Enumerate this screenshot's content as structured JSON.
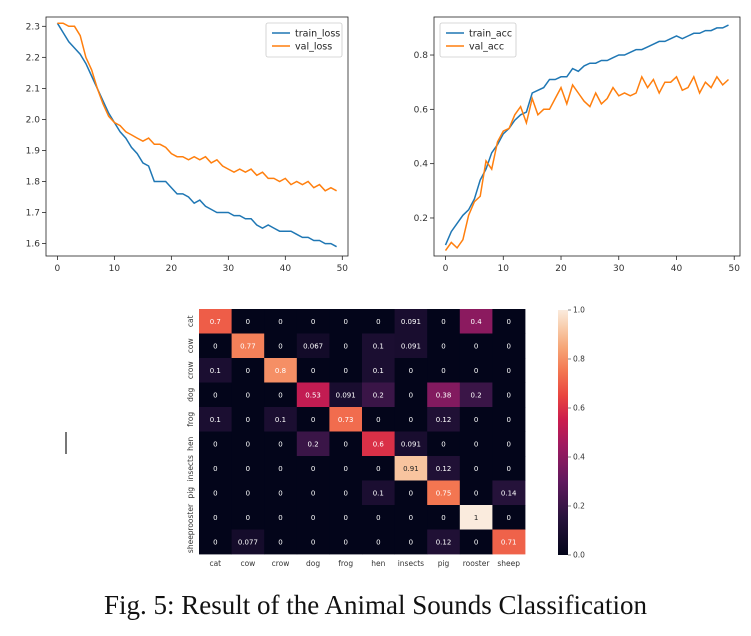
{
  "chart_data": [
    {
      "type": "line",
      "title": "",
      "xlabel": "",
      "ylabel": "",
      "xlim": [
        -2,
        51
      ],
      "ylim": [
        1.56,
        2.33
      ],
      "xticks": [
        0,
        10,
        20,
        30,
        40,
        50
      ],
      "yticks": [
        1.6,
        1.7,
        1.8,
        1.9,
        2.0,
        2.1,
        2.2,
        2.3
      ],
      "ytick_labels": [
        "1.6",
        "1.7",
        "1.8",
        "1.9",
        "2.0",
        "2.1",
        "2.2",
        "2.3"
      ],
      "legend_position": "top-right",
      "grid": false,
      "series": [
        {
          "name": "train_loss",
          "color": "#1f77b4",
          "x": [
            0,
            1,
            2,
            3,
            4,
            5,
            6,
            7,
            8,
            9,
            10,
            11,
            12,
            13,
            14,
            15,
            16,
            17,
            18,
            19,
            20,
            21,
            22,
            23,
            24,
            25,
            26,
            27,
            28,
            29,
            30,
            31,
            32,
            33,
            34,
            35,
            36,
            37,
            38,
            39,
            40,
            41,
            42,
            43,
            44,
            45,
            46,
            47,
            48,
            49
          ],
          "values": [
            2.31,
            2.28,
            2.25,
            2.23,
            2.21,
            2.18,
            2.14,
            2.1,
            2.06,
            2.02,
            1.99,
            1.96,
            1.94,
            1.91,
            1.89,
            1.86,
            1.85,
            1.8,
            1.8,
            1.8,
            1.78,
            1.76,
            1.76,
            1.75,
            1.73,
            1.74,
            1.72,
            1.71,
            1.7,
            1.7,
            1.7,
            1.69,
            1.69,
            1.68,
            1.68,
            1.66,
            1.65,
            1.66,
            1.65,
            1.64,
            1.64,
            1.64,
            1.63,
            1.62,
            1.62,
            1.61,
            1.61,
            1.6,
            1.6,
            1.59
          ]
        },
        {
          "name": "val_loss",
          "color": "#ff7f0e",
          "x": [
            0,
            1,
            2,
            3,
            4,
            5,
            6,
            7,
            8,
            9,
            10,
            11,
            12,
            13,
            14,
            15,
            16,
            17,
            18,
            19,
            20,
            21,
            22,
            23,
            24,
            25,
            26,
            27,
            28,
            29,
            30,
            31,
            32,
            33,
            34,
            35,
            36,
            37,
            38,
            39,
            40,
            41,
            42,
            43,
            44,
            45,
            46,
            47,
            48,
            49
          ],
          "values": [
            2.31,
            2.31,
            2.3,
            2.3,
            2.27,
            2.2,
            2.16,
            2.1,
            2.05,
            2.01,
            1.99,
            1.98,
            1.96,
            1.95,
            1.94,
            1.93,
            1.94,
            1.92,
            1.92,
            1.91,
            1.89,
            1.88,
            1.88,
            1.87,
            1.88,
            1.87,
            1.88,
            1.86,
            1.87,
            1.85,
            1.84,
            1.83,
            1.84,
            1.83,
            1.84,
            1.82,
            1.83,
            1.81,
            1.81,
            1.8,
            1.81,
            1.79,
            1.8,
            1.79,
            1.8,
            1.78,
            1.79,
            1.77,
            1.78,
            1.77
          ]
        }
      ]
    },
    {
      "type": "line",
      "title": "",
      "xlabel": "",
      "ylabel": "",
      "xlim": [
        -2,
        51
      ],
      "ylim": [
        0.06,
        0.94
      ],
      "xticks": [
        0,
        10,
        20,
        30,
        40,
        50
      ],
      "yticks": [
        0.2,
        0.4,
        0.6,
        0.8
      ],
      "ytick_labels": [
        "0.2",
        "0.4",
        "0.6",
        "0.8"
      ],
      "legend_position": "top-left",
      "grid": false,
      "series": [
        {
          "name": "train_acc",
          "color": "#1f77b4",
          "x": [
            0,
            1,
            2,
            3,
            4,
            5,
            6,
            7,
            8,
            9,
            10,
            11,
            12,
            13,
            14,
            15,
            16,
            17,
            18,
            19,
            20,
            21,
            22,
            23,
            24,
            25,
            26,
            27,
            28,
            29,
            30,
            31,
            32,
            33,
            34,
            35,
            36,
            37,
            38,
            39,
            40,
            41,
            42,
            43,
            44,
            45,
            46,
            47,
            48,
            49
          ],
          "values": [
            0.1,
            0.15,
            0.18,
            0.21,
            0.23,
            0.27,
            0.34,
            0.38,
            0.44,
            0.47,
            0.51,
            0.53,
            0.56,
            0.58,
            0.59,
            0.66,
            0.67,
            0.68,
            0.71,
            0.71,
            0.72,
            0.72,
            0.75,
            0.74,
            0.76,
            0.77,
            0.77,
            0.78,
            0.78,
            0.79,
            0.8,
            0.8,
            0.81,
            0.82,
            0.82,
            0.83,
            0.84,
            0.85,
            0.85,
            0.86,
            0.87,
            0.86,
            0.87,
            0.88,
            0.88,
            0.89,
            0.89,
            0.9,
            0.9,
            0.91
          ]
        },
        {
          "name": "val_acc",
          "color": "#ff7f0e",
          "x": [
            0,
            1,
            2,
            3,
            4,
            5,
            6,
            7,
            8,
            9,
            10,
            11,
            12,
            13,
            14,
            15,
            16,
            17,
            18,
            19,
            20,
            21,
            22,
            23,
            24,
            25,
            26,
            27,
            28,
            29,
            30,
            31,
            32,
            33,
            34,
            35,
            36,
            37,
            38,
            39,
            40,
            41,
            42,
            43,
            44,
            45,
            46,
            47,
            48,
            49
          ],
          "values": [
            0.08,
            0.11,
            0.09,
            0.12,
            0.21,
            0.26,
            0.28,
            0.41,
            0.38,
            0.48,
            0.52,
            0.53,
            0.58,
            0.61,
            0.55,
            0.64,
            0.58,
            0.6,
            0.6,
            0.64,
            0.68,
            0.62,
            0.69,
            0.66,
            0.63,
            0.61,
            0.66,
            0.62,
            0.64,
            0.68,
            0.65,
            0.66,
            0.65,
            0.66,
            0.72,
            0.68,
            0.71,
            0.66,
            0.7,
            0.7,
            0.72,
            0.67,
            0.68,
            0.72,
            0.66,
            0.7,
            0.68,
            0.72,
            0.69,
            0.71
          ]
        }
      ]
    },
    {
      "type": "heatmap",
      "title": "",
      "x_labels": [
        "cat",
        "cow",
        "crow",
        "dog",
        "frog",
        "hen",
        "insects",
        "pig",
        "rooster",
        "sheep"
      ],
      "y_labels": [
        "cat",
        "cow",
        "crow",
        "dog",
        "frog",
        "hen",
        "insects",
        "pig",
        "rooster",
        "sheep"
      ],
      "values": [
        [
          0.7,
          0,
          0,
          0,
          0,
          0,
          0.091,
          0,
          0.4,
          0
        ],
        [
          0,
          0.77,
          0,
          0.067,
          0,
          0.1,
          0.091,
          0,
          0,
          0
        ],
        [
          0.1,
          0,
          0.8,
          0,
          0,
          0.1,
          0,
          0,
          0,
          0
        ],
        [
          0,
          0,
          0,
          0.53,
          0.091,
          0.2,
          0,
          0.38,
          0.2,
          0
        ],
        [
          0.1,
          0,
          0.1,
          0,
          0.73,
          0,
          0,
          0.12,
          0,
          0
        ],
        [
          0,
          0,
          0,
          0.2,
          0,
          0.6,
          0.091,
          0,
          0,
          0
        ],
        [
          0,
          0,
          0,
          0,
          0,
          0,
          0.91,
          0.12,
          0,
          0
        ],
        [
          0,
          0,
          0,
          0,
          0,
          0.1,
          0,
          0.75,
          0,
          0.14
        ],
        [
          0,
          0,
          0,
          0,
          0,
          0,
          0,
          0,
          1,
          0
        ],
        [
          0,
          0.077,
          0,
          0,
          0,
          0,
          0,
          0.12,
          0,
          0.71
        ]
      ],
      "cell_labels": [
        [
          "0.7",
          "0",
          "0",
          "0",
          "0",
          "0",
          "0.091",
          "0",
          "0.4",
          "0"
        ],
        [
          "0",
          "0.77",
          "0",
          "0.067",
          "0",
          "0.1",
          "0.091",
          "0",
          "0",
          "0"
        ],
        [
          "0.1",
          "0",
          "0.8",
          "0",
          "0",
          "0.1",
          "0",
          "0",
          "0",
          "0"
        ],
        [
          "0",
          "0",
          "0",
          "0.53",
          "0.091",
          "0.2",
          "0",
          "0.38",
          "0.2",
          "0"
        ],
        [
          "0.1",
          "0",
          "0.1",
          "0",
          "0.73",
          "0",
          "0",
          "0.12",
          "0",
          "0"
        ],
        [
          "0",
          "0",
          "0",
          "0.2",
          "0",
          "0.6",
          "0.091",
          "0",
          "0",
          "0"
        ],
        [
          "0",
          "0",
          "0",
          "0",
          "0",
          "0",
          "0.91",
          "0.12",
          "0",
          "0"
        ],
        [
          "0",
          "0",
          "0",
          "0",
          "0",
          "0.1",
          "0",
          "0.75",
          "0",
          "0.14"
        ],
        [
          "0",
          "0",
          "0",
          "0",
          "0",
          "0",
          "0",
          "0",
          "1",
          "0"
        ],
        [
          "0",
          "0.077",
          "0",
          "0",
          "0",
          "0",
          "0",
          "0.12",
          "0",
          "0.71"
        ]
      ],
      "colorbar": {
        "min": 0,
        "max": 1,
        "ticks": [
          "0.0",
          "0.2",
          "0.4",
          "0.6",
          "0.8",
          "1.0"
        ],
        "colormap": "rocket"
      }
    }
  ],
  "caption": "Fig. 5: Result of the Animal Sounds Classification"
}
